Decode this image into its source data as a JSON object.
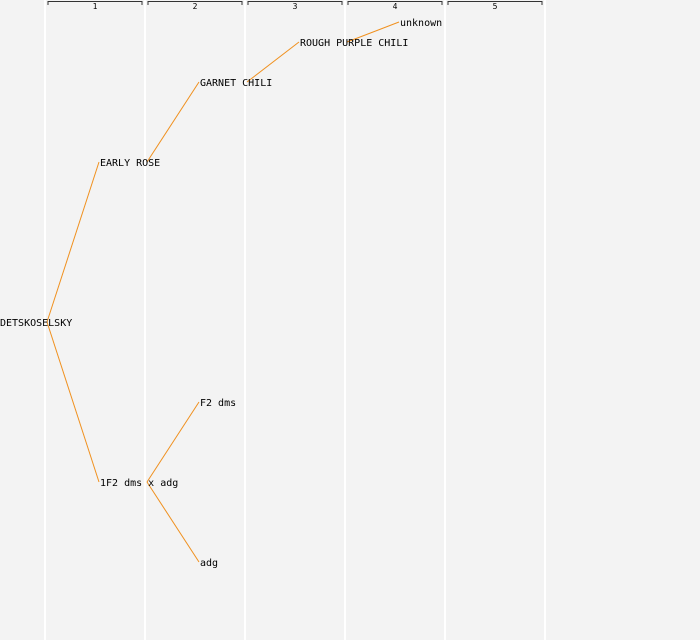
{
  "colors": {
    "background": "#f3f3f3",
    "column_line": "#ffffff",
    "bracket": "#333333",
    "edge": "#f0901e",
    "text": "#000000"
  },
  "generations": [
    "1",
    "2",
    "3",
    "4",
    "5"
  ],
  "nodes": [
    {
      "id": "n0",
      "label": "DETSKOSELSKY",
      "generation": 0,
      "row": 8
    },
    {
      "id": "n1",
      "label": "EARLY ROSE",
      "generation": 1,
      "row": 4
    },
    {
      "id": "n2",
      "label": "1F2 dms x adg",
      "generation": 1,
      "row": 12
    },
    {
      "id": "n3",
      "label": "GARNET CHILI",
      "generation": 2,
      "row": 2
    },
    {
      "id": "n4",
      "label": "F2 dms",
      "generation": 2,
      "row": 10
    },
    {
      "id": "n5",
      "label": "adg",
      "generation": 2,
      "row": 14
    },
    {
      "id": "n6",
      "label": "ROUGH PURPLE CHILI",
      "generation": 3,
      "row": 1
    },
    {
      "id": "n7",
      "label": "unknown",
      "generation": 4,
      "row": 0.5
    }
  ],
  "edges": [
    [
      "n0",
      "n1"
    ],
    [
      "n0",
      "n2"
    ],
    [
      "n1",
      "n3"
    ],
    [
      "n2",
      "n4"
    ],
    [
      "n2",
      "n5"
    ],
    [
      "n3",
      "n6"
    ],
    [
      "n6",
      "n7"
    ]
  ]
}
